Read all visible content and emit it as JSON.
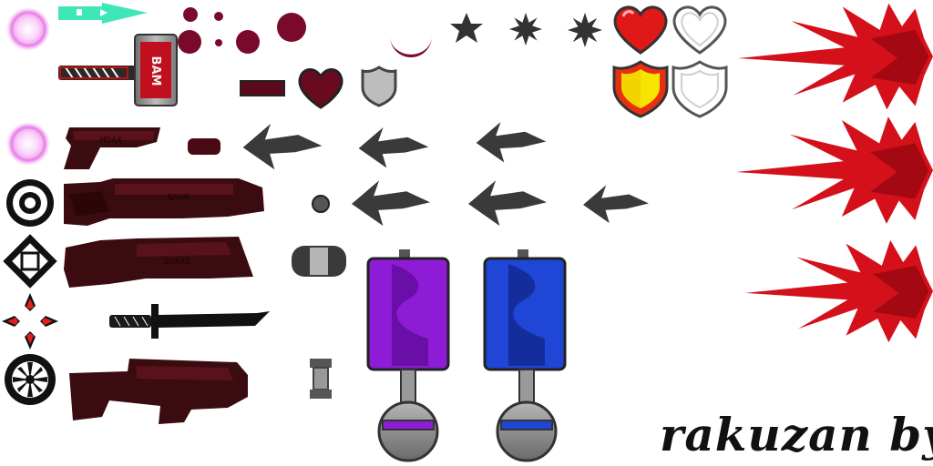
{
  "sheet": {
    "title": "",
    "credit": "rakuzan by",
    "hammer_label": "BAM",
    "gun_labels": [
      "HDAX",
      "NAKR",
      "SUAXI"
    ]
  },
  "sprites": [
    {
      "name": "orb-icon",
      "interactable": false
    },
    {
      "name": "arrow-projectile-icon",
      "interactable": false
    },
    {
      "name": "hammer-icon",
      "interactable": false
    },
    {
      "name": "pistol-icon",
      "interactable": false
    },
    {
      "name": "rifle-icon",
      "interactable": false
    },
    {
      "name": "shotgun-icon",
      "interactable": false
    },
    {
      "name": "katana-icon",
      "interactable": false
    },
    {
      "name": "bazooka-icon",
      "interactable": false
    },
    {
      "name": "heart-full-icon",
      "interactable": false
    },
    {
      "name": "heart-empty-icon",
      "interactable": false
    },
    {
      "name": "shield-full-icon",
      "interactable": false
    },
    {
      "name": "shield-empty-icon",
      "interactable": false
    },
    {
      "name": "blood-splash-icon",
      "interactable": false
    },
    {
      "name": "spring-pad-purple",
      "interactable": false
    },
    {
      "name": "spring-pad-blue",
      "interactable": false
    }
  ],
  "colors": {
    "crimson": "#7a0a2c",
    "dark_maroon": "#3a0c10",
    "blood_red": "#d4101a",
    "heart_red": "#e01818",
    "shield_gold": "#f2d400",
    "purple": "#8e1cd6",
    "blue": "#1f46d6",
    "gray": "#8a8a8a",
    "dark_gray": "#333333",
    "teal": "#3fe6b8",
    "orb_pink": "#f4b8f4"
  }
}
